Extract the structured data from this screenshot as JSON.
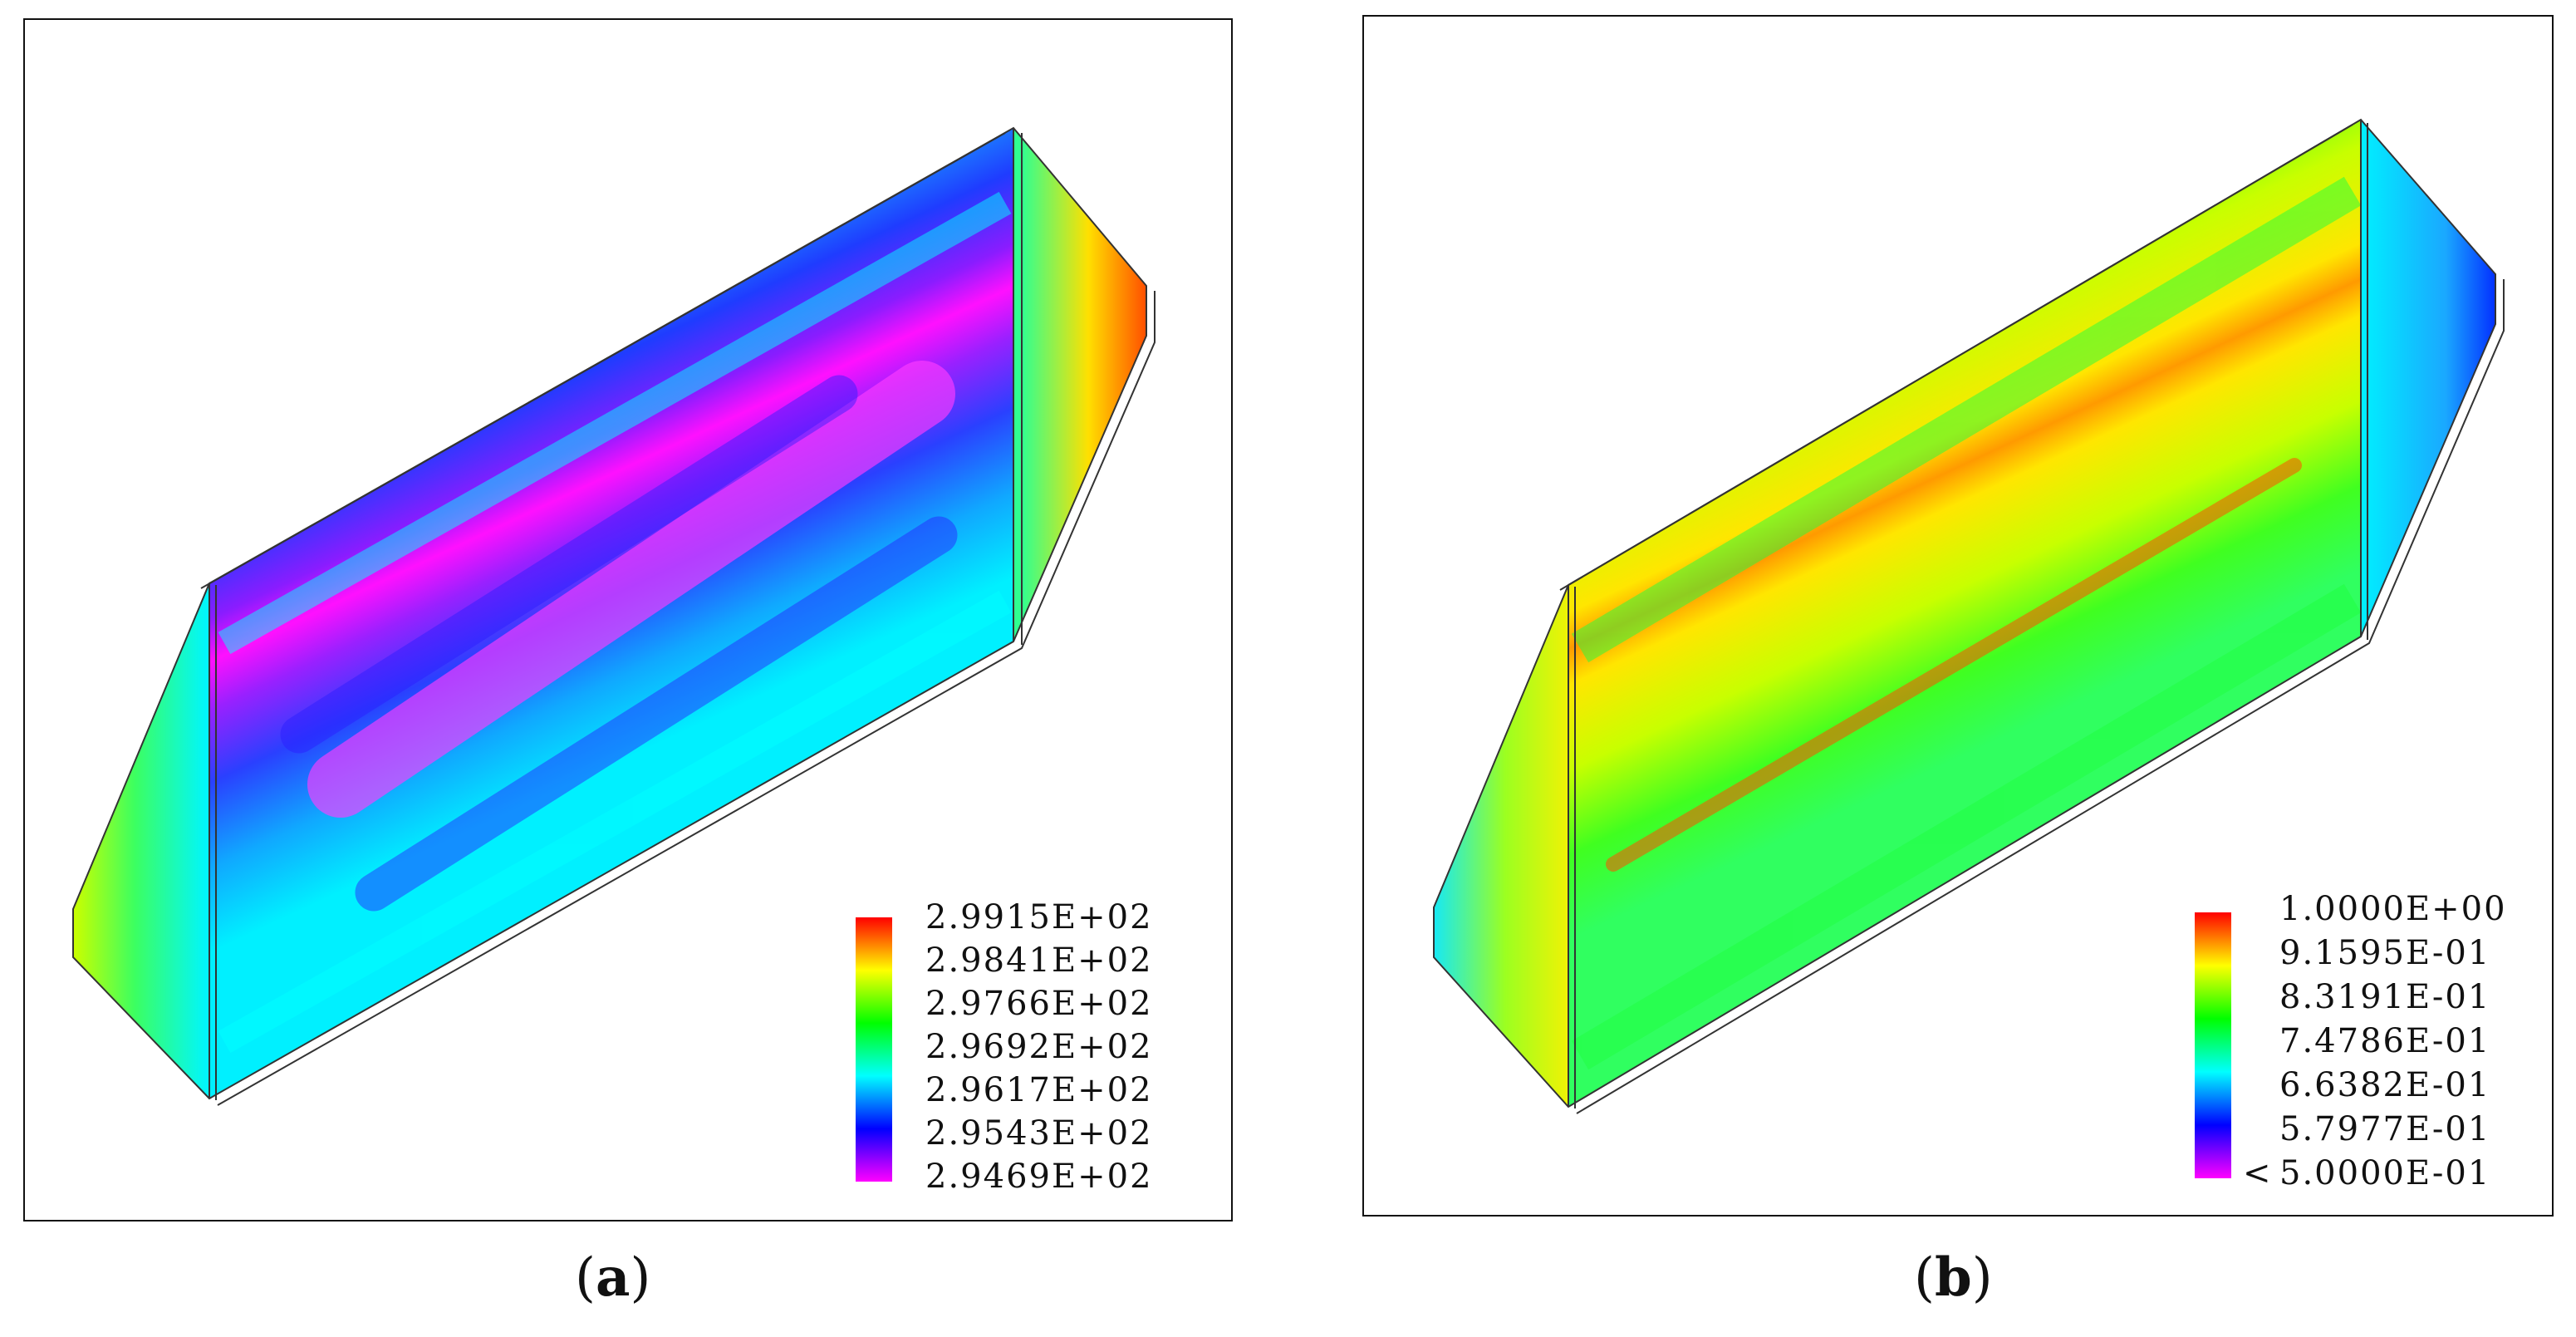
{
  "panels": [
    {
      "id": "a",
      "caption_open": "(",
      "caption_letter": "a",
      "caption_close": ")",
      "colormap": [
        "#ff0000",
        "#ffff00",
        "#00ff00",
        "#00ffff",
        "#0000ff",
        "#ff00ff"
      ],
      "legend_labels": [
        "2.9915E+02",
        "2.9841E+02",
        "2.9766E+02",
        "2.9692E+02",
        "2.9617E+02",
        "2.9543E+02",
        "2.9469E+02"
      ]
    },
    {
      "id": "b",
      "caption_open": "(",
      "caption_letter": "b",
      "caption_close": ")",
      "colormap": [
        "#ff0000",
        "#ffff00",
        "#00ff00",
        "#00ffff",
        "#0000ff",
        "#ff00ff"
      ],
      "legend_prefix": "<",
      "legend_labels": [
        "1.0000E+00",
        "9.1595E-01",
        "8.3191E-01",
        "7.4786E-01",
        "6.6382E-01",
        "5.7977E-01",
        "5.0000E-01"
      ]
    }
  ]
}
